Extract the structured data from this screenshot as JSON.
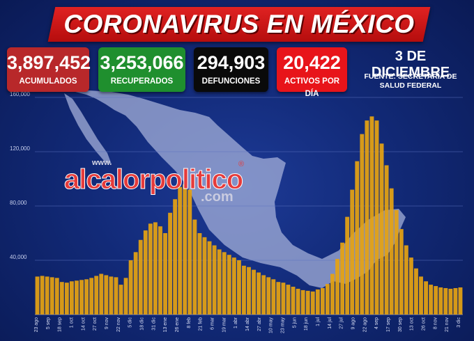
{
  "header": {
    "title": "CORONAVIRUS EN MÉXICO"
  },
  "stats": [
    {
      "value": "3,897,452",
      "label": "ACUMULADOS"
    },
    {
      "value": "3,253,066",
      "label": "RECUPERADOS"
    },
    {
      "value": "294,903",
      "label": "DEFUNCIONES"
    },
    {
      "value": "20,422",
      "label": "ACTIVOS POR DÍA"
    }
  ],
  "date": "3 DE DICIEMBRE",
  "source": {
    "line1": "FUENTE: SECRETARÍA DE",
    "line2": "SALUD FEDERAL"
  },
  "watermark": {
    "www": "www.",
    "main": "alcalorpolitico",
    "reg": "®",
    "domain": ".com"
  },
  "colors": {
    "bar": "#e5a312",
    "title_band": "#d41a1a",
    "background": "#132b7a",
    "map": "#a9b4dd"
  },
  "chart_data": {
    "type": "bar",
    "title": "",
    "xlabel": "",
    "ylabel": "",
    "ylim": [
      0,
      160000
    ],
    "yticks": [
      {
        "value": 40000,
        "label": "40,000"
      },
      {
        "value": 80000,
        "label": "80,000"
      },
      {
        "value": 120000,
        "label": "120,000"
      },
      {
        "value": 160000,
        "label": "160,000"
      }
    ],
    "grid": true,
    "x_tick_labels": [
      "23 ago",
      "5 sep",
      "18 sep",
      "1 oct",
      "14 oct",
      "27 oct",
      "9 nov",
      "22 nov",
      "5 dic",
      "18 dic",
      "31 dic",
      "13 ene",
      "26 ene",
      "8 feb",
      "21 feb",
      "6 mar",
      "19 mar",
      "1 abr",
      "14 abr",
      "27 abr",
      "10 may",
      "23 may",
      "5 jun",
      "18 jun",
      "1 jul",
      "14 jul",
      "27 jul",
      "9 ago",
      "22 ago",
      "4 sep",
      "17 sep",
      "30 sep",
      "13 oct",
      "26 oct",
      "8 nov",
      "21 nov",
      "3 dic"
    ],
    "series": [
      {
        "values": [
          28000,
          28500,
          28000,
          27500,
          27000,
          24000,
          23500,
          24500,
          25000,
          25500,
          26000,
          27000,
          28500,
          30000,
          29000,
          28000,
          27500,
          22000,
          27000,
          40000,
          46000,
          55000,
          62000,
          67000,
          68000,
          65000,
          60000,
          75000,
          85000,
          94000,
          96000,
          92000,
          70000,
          60000,
          57000,
          54000,
          51000,
          48000,
          46000,
          44000,
          42000,
          40000,
          36000,
          35000,
          33000,
          31000,
          29000,
          27500,
          26000,
          24000,
          23500,
          22000,
          20500,
          19000,
          18000,
          17500,
          17000,
          18500,
          19500,
          22500,
          30000,
          41000,
          53000,
          72000,
          92000,
          113000,
          133000,
          143000,
          146000,
          143000,
          126000,
          110000,
          93000,
          77000,
          63000,
          51000,
          42000,
          34000,
          28000,
          24500,
          22000,
          21000,
          20000,
          19500,
          19000,
          19500,
          20000
        ]
      }
    ]
  }
}
